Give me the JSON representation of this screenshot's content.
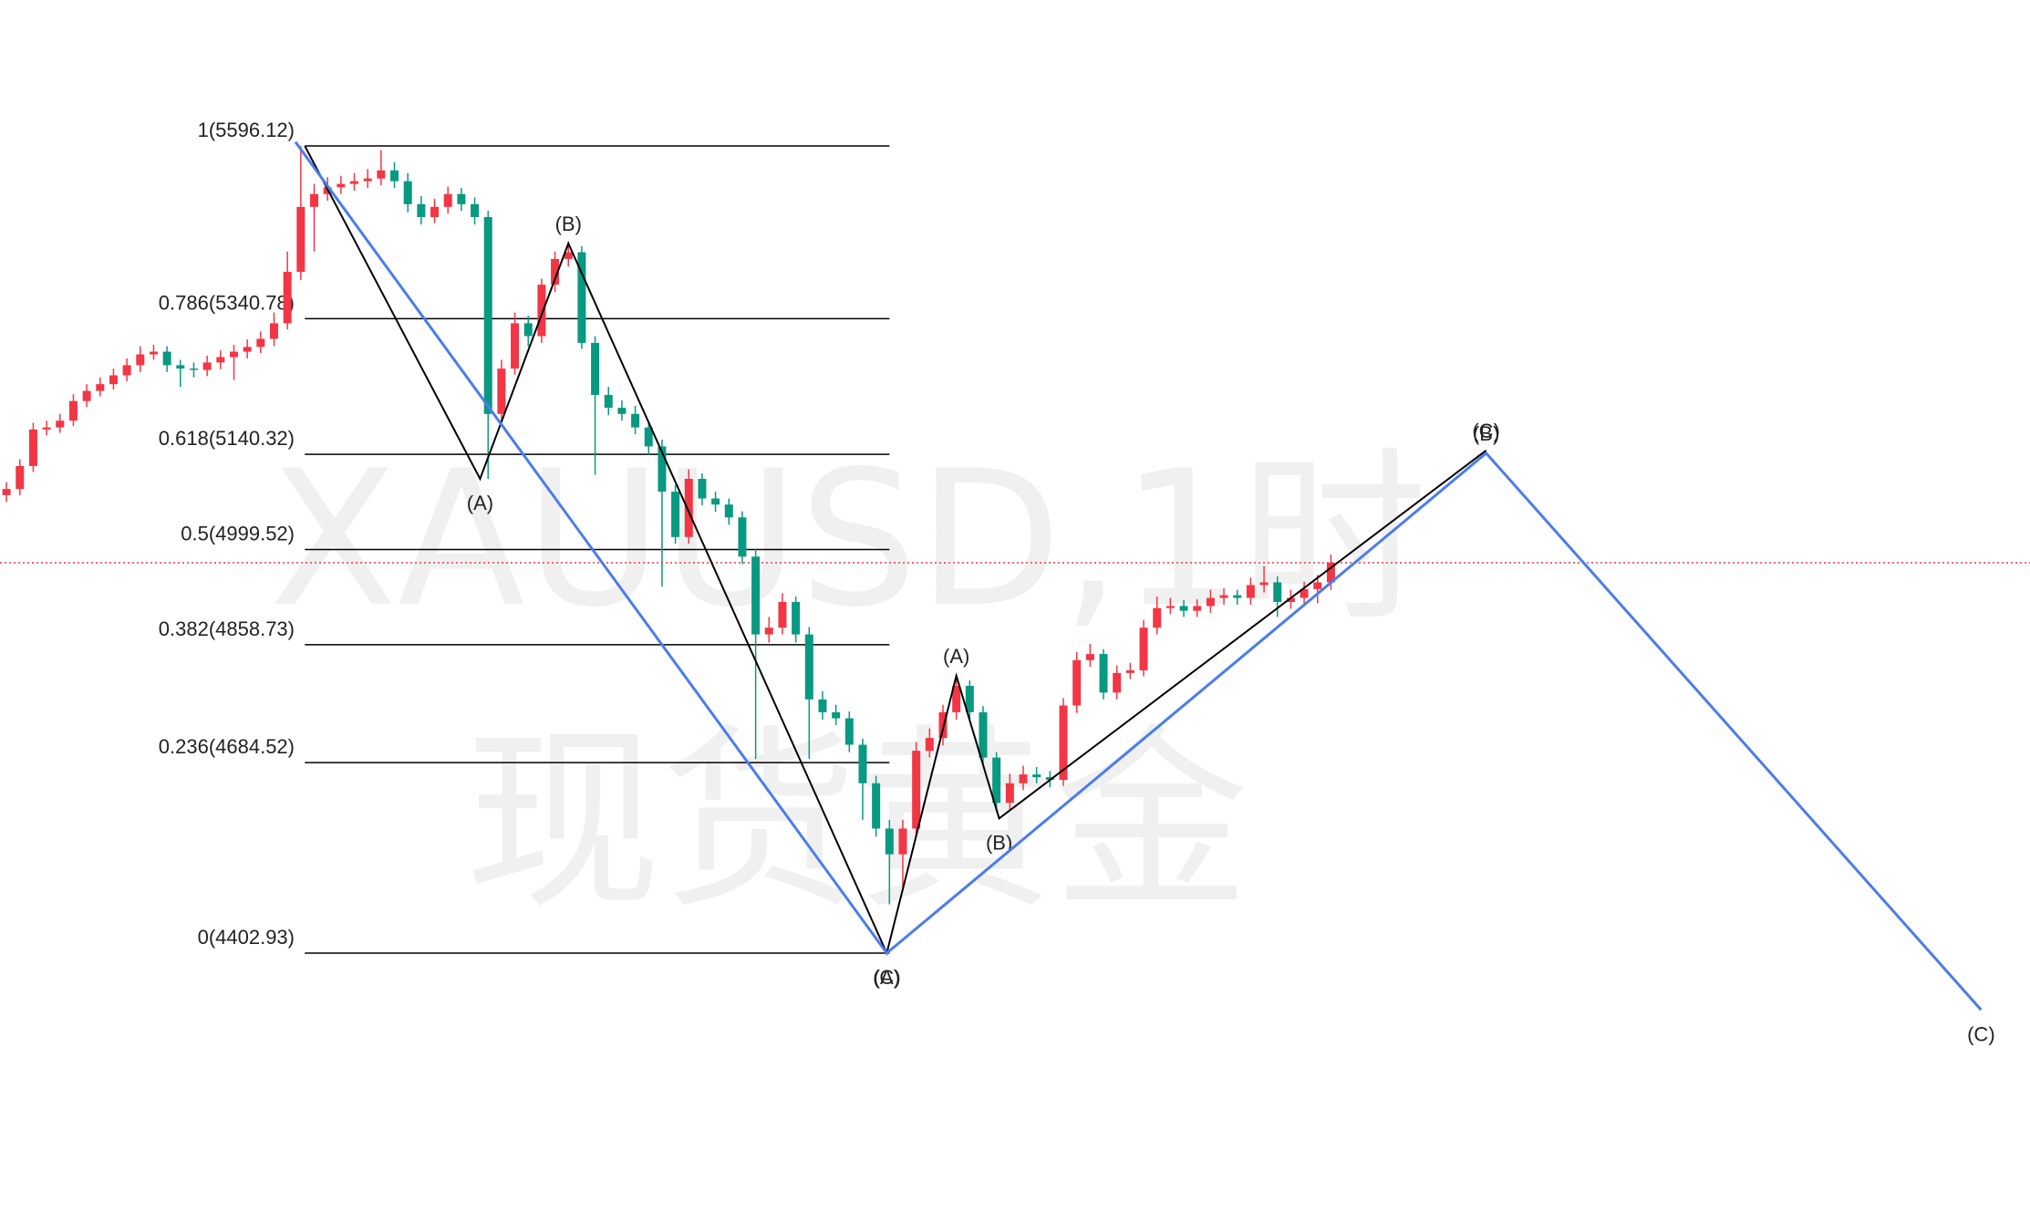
{
  "watermark": {
    "symbol": "XAUUSD,1时",
    "name": "现货黄金"
  },
  "chart_data": {
    "type": "candlestick",
    "open": [
      5080,
      5089,
      5123,
      5177,
      5180,
      5190,
      5219,
      5234,
      5244,
      5257,
      5272,
      5288,
      5292,
      5272,
      5267,
      5265,
      5276,
      5284,
      5292,
      5299,
      5311,
      5334,
      5410,
      5506,
      5525,
      5535,
      5540,
      5544,
      5548,
      5560,
      5544,
      5510,
      5491,
      5506,
      5525,
      5510,
      5491,
      5200,
      5267,
      5334,
      5315,
      5391,
      5429,
      5439,
      5305,
      5228,
      5209,
      5200,
      5180,
      5152,
      5085,
      5018,
      5104,
      5075,
      5066,
      5047,
      4989,
      4874,
      4884,
      4922,
      4874,
      4778,
      4759,
      4750,
      4711,
      4654,
      4587,
      4549,
      4587,
      4702,
      4721,
      4759,
      4798,
      4759,
      4692,
      4625,
      4654,
      4667,
      4663,
      4659,
      4769,
      4836,
      4845,
      4788,
      4817,
      4821,
      4884,
      4913,
      4916,
      4909,
      4916,
      4928,
      4932,
      4928,
      4947,
      4951,
      4922,
      4928,
      4941,
      4951
    ],
    "high": [
      5099,
      5133,
      5187,
      5190,
      5200,
      5229,
      5244,
      5254,
      5267,
      5282,
      5300,
      5302,
      5300,
      5280,
      5276,
      5286,
      5294,
      5302,
      5310,
      5322,
      5350,
      5440,
      5596,
      5540,
      5550,
      5552,
      5556,
      5562,
      5590,
      5572,
      5556,
      5522,
      5518,
      5536,
      5534,
      5520,
      5500,
      5280,
      5350,
      5345,
      5400,
      5440,
      5455,
      5448,
      5315,
      5240,
      5220,
      5212,
      5190,
      5162,
      5095,
      5118,
      5112,
      5085,
      5075,
      5056,
      5000,
      4900,
      4935,
      4930,
      4885,
      4790,
      4770,
      4760,
      4720,
      4665,
      4600,
      4600,
      4715,
      4735,
      4770,
      4812,
      4806,
      4768,
      4700,
      4668,
      4680,
      4678,
      4672,
      4780,
      4848,
      4860,
      4852,
      4828,
      4832,
      4895,
      4930,
      4928,
      4925,
      4926,
      4940,
      4942,
      4940,
      4958,
      4975,
      4960,
      4940,
      4952,
      4962,
      4992
    ],
    "low": [
      5070,
      5080,
      5114,
      5168,
      5172,
      5182,
      5210,
      5226,
      5236,
      5248,
      5262,
      5280,
      5262,
      5240,
      5254,
      5256,
      5266,
      5250,
      5282,
      5290,
      5300,
      5325,
      5398,
      5440,
      5515,
      5525,
      5530,
      5534,
      5538,
      5534,
      5498,
      5480,
      5482,
      5496,
      5500,
      5480,
      5104,
      5190,
      5258,
      5300,
      5305,
      5380,
      5418,
      5296,
      5110,
      5198,
      5190,
      5170,
      5140,
      4945,
      5008,
      5008,
      5065,
      5055,
      5036,
      4978,
      4690,
      4862,
      4874,
      4862,
      4690,
      4748,
      4740,
      4700,
      4600,
      4575,
      4475,
      4500,
      4575,
      4692,
      4710,
      4748,
      4748,
      4682,
      4614,
      4614,
      4644,
      4654,
      4648,
      4650,
      4758,
      4826,
      4778,
      4778,
      4808,
      4812,
      4874,
      4904,
      4900,
      4900,
      4906,
      4918,
      4918,
      4918,
      4936,
      4900,
      4912,
      4918,
      4920,
      4940
    ],
    "close": [
      5089,
      5123,
      5177,
      5180,
      5190,
      5219,
      5234,
      5244,
      5257,
      5272,
      5288,
      5292,
      5272,
      5267,
      5265,
      5276,
      5284,
      5292,
      5299,
      5311,
      5334,
      5410,
      5506,
      5525,
      5535,
      5540,
      5544,
      5548,
      5560,
      5544,
      5510,
      5491,
      5506,
      5525,
      5510,
      5491,
      5200,
      5267,
      5334,
      5315,
      5391,
      5429,
      5439,
      5305,
      5228,
      5209,
      5200,
      5180,
      5152,
      5085,
      5018,
      5104,
      5075,
      5066,
      5047,
      4989,
      4874,
      4884,
      4922,
      4874,
      4778,
      4759,
      4750,
      4711,
      4654,
      4587,
      4549,
      4587,
      4702,
      4721,
      4759,
      4798,
      4759,
      4692,
      4625,
      4654,
      4667,
      4663,
      4659,
      4769,
      4836,
      4845,
      4788,
      4817,
      4821,
      4884,
      4913,
      4916,
      4909,
      4916,
      4928,
      4932,
      4928,
      4947,
      4951,
      4922,
      4928,
      4941,
      4951,
      4980
    ],
    "up_color": "#f23645",
    "down_color": "#089981",
    "price_line": {
      "color": "#f23645"
    },
    "fib": {
      "x_range": [
        22.3,
        66
      ],
      "color": "#000000",
      "levels": [
        {
          "value": 5596.12,
          "label": "1(5596.12)"
        },
        {
          "value": 5340.78,
          "label": "0.786(5340.78)"
        },
        {
          "value": 5140.32,
          "label": "0.618(5140.32)"
        },
        {
          "value": 4999.52,
          "label": "0.5(4999.52)"
        },
        {
          "value": 4858.73,
          "label": "0.382(4858.73)"
        },
        {
          "value": 4684.52,
          "label": "0.236(4684.52)"
        },
        {
          "value": 4402.93,
          "label": "0(4402.93)"
        }
      ]
    },
    "waves": [
      {
        "color": "#000000",
        "points": [
          {
            "x": 22.3,
            "y": 5596.12
          },
          {
            "x": 35.4,
            "y": 5104,
            "label": "(A)"
          },
          {
            "x": 42,
            "y": 5452,
            "label": "(B)"
          },
          {
            "x": 65.8,
            "y": 4402.93,
            "label": "(C)"
          },
          {
            "x": 71,
            "y": 4813,
            "label": "(A)"
          },
          {
            "x": 74.2,
            "y": 4602,
            "label": "(B)"
          },
          {
            "x": 110.6,
            "y": 5146,
            "label": "(C)"
          }
        ]
      },
      {
        "color": "#4a7cf0",
        "points": [
          {
            "x": 21.6,
            "y": 5602
          },
          {
            "x": 65.8,
            "y": 4402.93,
            "label": "(A)"
          },
          {
            "x": 110.6,
            "y": 5142,
            "label": "(B)"
          },
          {
            "x": 147.6,
            "y": 4319,
            "label": "(C)"
          }
        ]
      }
    ]
  }
}
